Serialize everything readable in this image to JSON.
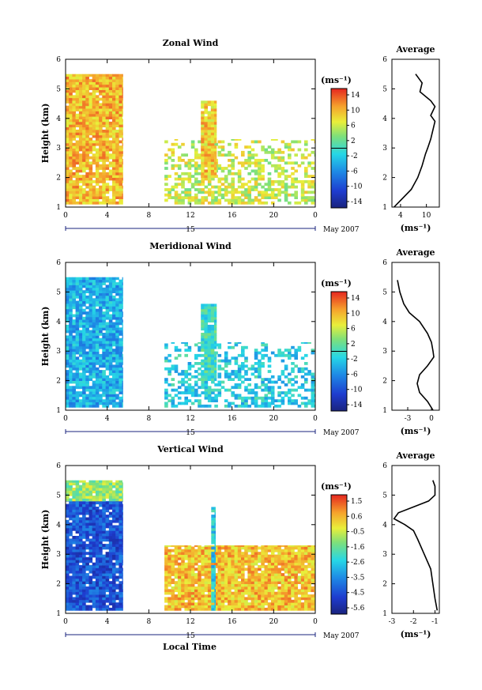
{
  "figure": {
    "date_left": "15",
    "date_right": "May 2007",
    "xlabel": "Local Time",
    "ylabel": "Height (km)",
    "cbar_unit": "(ms⁻¹)",
    "avg_title": "Average",
    "avg_xlabel": "(ms⁻¹)"
  },
  "chart_data": [
    {
      "type": "heatmap",
      "title": "Zonal Wind",
      "xlabel": "",
      "ylabel": "Height (km)",
      "xticks": [
        "0",
        "4",
        "8",
        "12",
        "16",
        "20",
        "0"
      ],
      "yticks": [
        "1",
        "2",
        "3",
        "4",
        "5",
        "6"
      ],
      "xlim": [
        0,
        24
      ],
      "ylim": [
        1,
        6
      ],
      "colorbar": {
        "unit": "(ms⁻¹)",
        "ticks": [
          "14",
          "10",
          "6",
          "2",
          "-2",
          "-6",
          "-10",
          "-14"
        ],
        "range": [
          -16,
          16
        ],
        "contour_value": 0
      },
      "regions": [
        {
          "t0": 0.0,
          "t1": 5.5,
          "h0": 1.1,
          "h1": 5.5,
          "value": 10
        },
        {
          "t0": 9.5,
          "t1": 24.0,
          "h0": 1.1,
          "h1": 3.3,
          "value": 6
        },
        {
          "t0": 13.0,
          "t1": 14.5,
          "h0": 2.0,
          "h1": 4.6,
          "value": 9
        }
      ],
      "average_profile": {
        "title": "Average",
        "xlabel": "(ms⁻¹)",
        "xticks": [
          "4",
          "10"
        ],
        "xlim": [
          2,
          13
        ],
        "height": [
          1.0,
          1.3,
          1.6,
          2.0,
          2.4,
          2.8,
          3.0,
          3.3,
          3.6,
          3.9,
          4.1,
          4.4,
          4.6,
          4.9,
          5.2,
          5.5
        ],
        "value": [
          2.5,
          4.5,
          6.5,
          8.0,
          9.0,
          9.8,
          10.3,
          11.0,
          11.5,
          12.0,
          11.0,
          12.0,
          11.0,
          8.5,
          9.0,
          7.5
        ]
      }
    },
    {
      "type": "heatmap",
      "title": "Meridional Wind",
      "xlabel": "",
      "ylabel": "Height (km)",
      "xticks": [
        "0",
        "4",
        "8",
        "12",
        "16",
        "20",
        "0"
      ],
      "yticks": [
        "1",
        "2",
        "3",
        "4",
        "5",
        "6"
      ],
      "xlim": [
        0,
        24
      ],
      "ylim": [
        1,
        6
      ],
      "colorbar": {
        "unit": "(ms⁻¹)",
        "ticks": [
          "14",
          "10",
          "6",
          "2",
          "-2",
          "-6",
          "-10",
          "-14"
        ],
        "range": [
          -16,
          16
        ],
        "contour_value": 0
      },
      "regions": [
        {
          "t0": 0.0,
          "t1": 5.5,
          "h0": 1.1,
          "h1": 5.5,
          "value": -4
        },
        {
          "t0": 9.5,
          "t1": 24.0,
          "h0": 1.1,
          "h1": 3.3,
          "value": -2
        },
        {
          "t0": 13.0,
          "t1": 14.5,
          "h0": 2.0,
          "h1": 4.6,
          "value": 0
        }
      ],
      "average_profile": {
        "title": "Average",
        "xlabel": "(ms⁻¹)",
        "xticks": [
          "-3",
          "0"
        ],
        "xlim": [
          -5,
          1
        ],
        "height": [
          1.0,
          1.3,
          1.6,
          1.9,
          2.2,
          2.5,
          2.8,
          3.0,
          3.3,
          3.6,
          4.0,
          4.3,
          4.6,
          5.0,
          5.4
        ],
        "value": [
          0.2,
          -0.5,
          -1.5,
          -1.8,
          -1.5,
          -0.5,
          0.3,
          0.2,
          0.0,
          -0.5,
          -1.5,
          -2.8,
          -3.5,
          -4.0,
          -4.3
        ]
      }
    },
    {
      "type": "heatmap",
      "title": "Vertical Wind",
      "xlabel": "Local Time",
      "ylabel": "Height (km)",
      "xticks": [
        "0",
        "4",
        "8",
        "12",
        "16",
        "20",
        "0"
      ],
      "yticks": [
        "1",
        "2",
        "3",
        "4",
        "5",
        "6"
      ],
      "xlim": [
        0,
        24
      ],
      "ylim": [
        1,
        6
      ],
      "colorbar": {
        "unit": "(ms⁻¹)",
        "ticks": [
          "1.5",
          "0.6",
          "-0.5",
          "-1.6",
          "-2.6",
          "-3.5",
          "-4.5",
          "-5.6"
        ],
        "range": [
          -6,
          2
        ],
        "contour_value": null
      },
      "regions": [
        {
          "t0": 0.0,
          "t1": 5.5,
          "h0": 1.1,
          "h1": 4.8,
          "value": -4.5
        },
        {
          "t0": 0.0,
          "t1": 5.5,
          "h0": 4.8,
          "h1": 5.5,
          "value": -1.0
        },
        {
          "t0": 9.5,
          "t1": 24.0,
          "h0": 1.1,
          "h1": 3.3,
          "value": 0.4
        },
        {
          "t0": 14.0,
          "t1": 14.4,
          "h0": 1.1,
          "h1": 4.6,
          "value": -2.6
        }
      ],
      "average_profile": {
        "title": "Average",
        "xlabel": "(ms⁻¹)",
        "xticks": [
          "-3",
          "-2",
          "-1"
        ],
        "xlim": [
          -3,
          -0.8
        ],
        "height": [
          1.1,
          1.5,
          2.0,
          2.5,
          3.0,
          3.5,
          3.8,
          4.0,
          4.2,
          4.4,
          4.6,
          4.8,
          5.0,
          5.3,
          5.5
        ],
        "value": [
          -0.9,
          -1.0,
          -1.1,
          -1.2,
          -1.5,
          -1.8,
          -2.0,
          -2.4,
          -2.9,
          -2.7,
          -2.0,
          -1.3,
          -1.0,
          -1.0,
          -1.1
        ]
      }
    }
  ]
}
